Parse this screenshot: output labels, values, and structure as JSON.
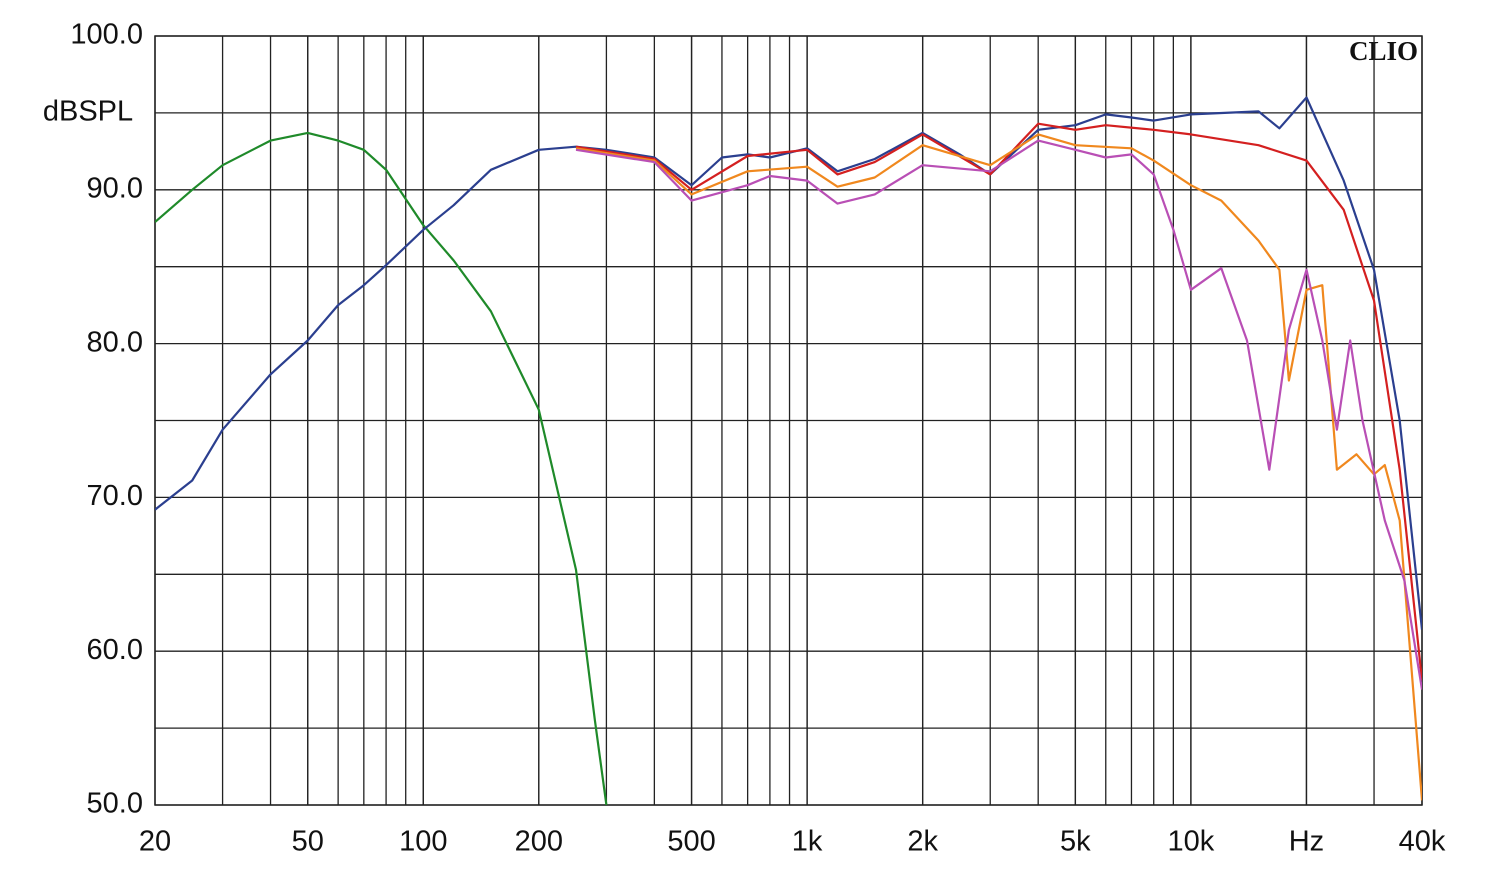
{
  "chart_data": {
    "type": "line",
    "y_label": "dBSPL",
    "annotation": "CLIO",
    "xscale": "log",
    "grid": true,
    "xlim": [
      20,
      40000
    ],
    "ylim": [
      50,
      100
    ],
    "xticks": [
      20,
      50,
      100,
      200,
      500,
      {
        "value": 1000,
        "label": "1k"
      },
      {
        "value": 2000,
        "label": "2k"
      },
      {
        "value": 5000,
        "label": "5k"
      },
      {
        "value": 10000,
        "label": "10k"
      },
      {
        "value": 20000,
        "label": "Hz"
      },
      {
        "value": 40000,
        "label": "40k"
      }
    ],
    "yticks": [
      {
        "value": 50,
        "label": "50.0"
      },
      {
        "value": 60,
        "label": "60.0"
      },
      {
        "value": 70,
        "label": "70.0"
      },
      {
        "value": 80,
        "label": "80.0"
      },
      {
        "value": 90,
        "label": "90.0"
      },
      {
        "value": 100,
        "label": "100.0"
      }
    ],
    "series": [
      {
        "color": "#1f8a2a",
        "x": [
          20,
          25,
          30,
          40,
          50,
          60,
          70,
          80,
          100,
          120,
          150,
          200,
          250,
          280,
          300
        ],
        "values": [
          87.9,
          90.0,
          91.6,
          93.2,
          93.7,
          93.2,
          92.6,
          91.3,
          87.7,
          85.4,
          82.1,
          75.7,
          65.3,
          55.5,
          50
        ]
      },
      {
        "color": "#2b3f8f",
        "x": [
          20,
          25,
          30,
          40,
          50,
          60,
          70,
          80,
          100,
          120,
          150,
          200,
          250,
          300,
          400,
          500,
          600,
          700,
          800,
          1000,
          1200,
          1500,
          2000,
          2500,
          3000,
          4000,
          5000,
          6000,
          7000,
          8000,
          10000,
          15000,
          17000,
          20000,
          25000,
          30000,
          35000,
          40000
        ],
        "values": [
          69.2,
          71.1,
          74.4,
          78,
          80.2,
          82.5,
          83.8,
          85.1,
          87.4,
          89,
          91.3,
          92.6,
          92.8,
          92.6,
          92.1,
          90.3,
          92.1,
          92.3,
          92.1,
          92.7,
          91.2,
          92,
          93.7,
          92.3,
          91,
          93.9,
          94.2,
          94.9,
          94.7,
          94.5,
          94.9,
          95.1,
          94,
          96,
          90.6,
          84.8,
          75,
          61.4
        ]
      },
      {
        "color": "#d42020",
        "x": [
          250,
          400,
          500,
          700,
          1000,
          1200,
          1500,
          2000,
          3000,
          4000,
          5000,
          6000,
          8000,
          10000,
          15000,
          20000,
          25000,
          30000,
          35000,
          40000
        ],
        "values": [
          92.8,
          92.0,
          90,
          92.2,
          92.6,
          91,
          91.8,
          93.6,
          91,
          94.3,
          93.9,
          94.2,
          93.9,
          93.6,
          92.9,
          91.9,
          88.7,
          82.8,
          71.8,
          58.1
        ]
      },
      {
        "color": "#f0881e",
        "x": [
          250,
          400,
          500,
          700,
          1000,
          1200,
          1500,
          2000,
          3000,
          4000,
          5000,
          7000,
          8000,
          10000,
          12000,
          15000,
          17000,
          18000,
          20000,
          22000,
          24000,
          27000,
          30000,
          32000,
          35000,
          40000
        ],
        "values": [
          92.7,
          91.9,
          89.7,
          91.2,
          91.5,
          90.2,
          90.8,
          92.9,
          91.6,
          93.6,
          92.9,
          92.7,
          91.9,
          90.3,
          89.3,
          86.7,
          84.8,
          77.6,
          83.5,
          83.8,
          71.8,
          72.8,
          71.5,
          72.1,
          68.5,
          50.3
        ]
      },
      {
        "color": "#b94fb5",
        "x": [
          250,
          400,
          500,
          700,
          800,
          1000,
          1200,
          1500,
          2000,
          3000,
          4000,
          5000,
          6000,
          7000,
          8000,
          9000,
          10000,
          12000,
          14000,
          16000,
          18000,
          20000,
          22000,
          24000,
          26000,
          28000,
          32000,
          36000,
          40000
        ],
        "values": [
          92.6,
          91.8,
          89.3,
          90.3,
          90.9,
          90.6,
          89.1,
          89.7,
          91.6,
          91.2,
          93.2,
          92.6,
          92.1,
          92.3,
          91,
          87.4,
          83.5,
          84.9,
          80.2,
          71.8,
          80.9,
          84.8,
          80.2,
          74.4,
          80.2,
          75,
          68.5,
          64.6,
          57.5
        ]
      }
    ]
  }
}
